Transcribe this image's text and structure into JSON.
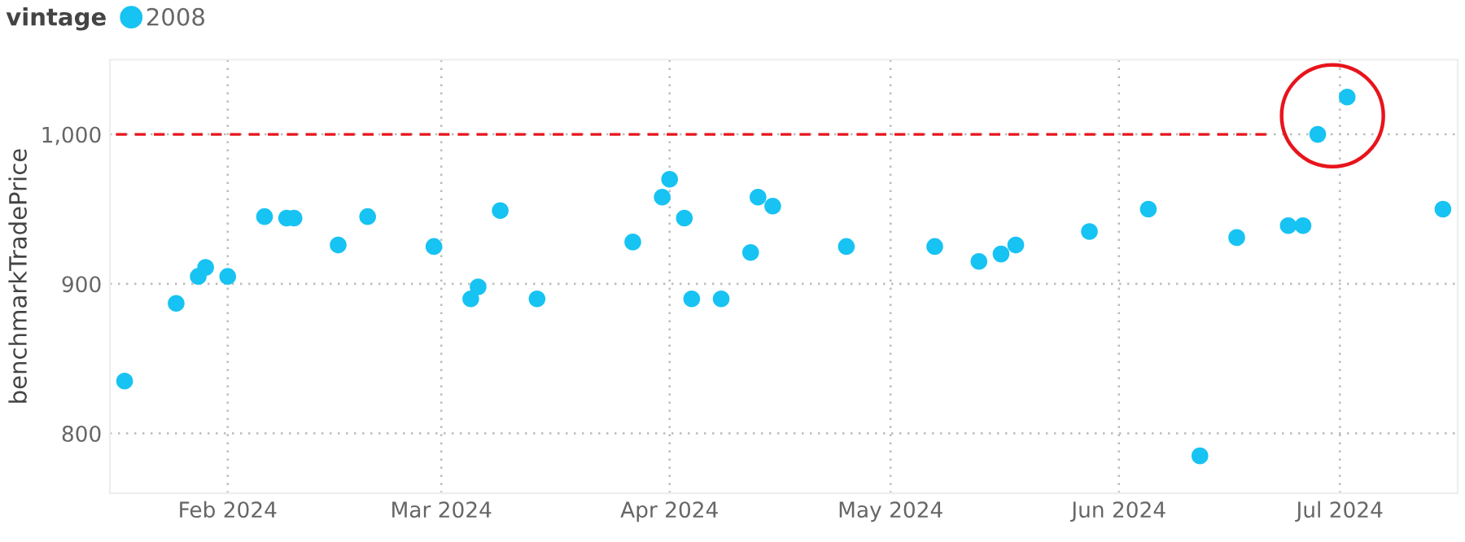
{
  "chart_data": {
    "type": "scatter",
    "ylabel": "benchmarkTradePrice",
    "legend_title": "vintage",
    "legend": "top left",
    "grid": true,
    "xlim": [
      "2024-01-16",
      "2024-07-17"
    ],
    "ylim": [
      760,
      1050
    ],
    "xticks": [
      {
        "value": "2024-02-01",
        "label": "Feb 2024"
      },
      {
        "value": "2024-03-01",
        "label": "Mar 2024"
      },
      {
        "value": "2024-04-01",
        "label": "Apr 2024"
      },
      {
        "value": "2024-05-01",
        "label": "May 2024"
      },
      {
        "value": "2024-06-01",
        "label": "Jun 2024"
      },
      {
        "value": "2024-07-01",
        "label": "Jul 2024"
      }
    ],
    "yticks": [
      {
        "value": 800,
        "label": "800"
      },
      {
        "value": 900,
        "label": "900"
      },
      {
        "value": 1000,
        "label": "1,000"
      }
    ],
    "series": [
      {
        "name": "2008",
        "marker": "circle",
        "color": "#17c3f2",
        "x": [
          "2024-01-18",
          "2024-01-25",
          "2024-01-28",
          "2024-01-29",
          "2024-02-01",
          "2024-02-06",
          "2024-02-09",
          "2024-02-10",
          "2024-02-16",
          "2024-02-20",
          "2024-02-29",
          "2024-03-05",
          "2024-03-06",
          "2024-03-09",
          "2024-03-14",
          "2024-03-27",
          "2024-03-31",
          "2024-04-01",
          "2024-04-03",
          "2024-04-04",
          "2024-04-08",
          "2024-04-12",
          "2024-04-13",
          "2024-04-15",
          "2024-04-25",
          "2024-05-07",
          "2024-05-13",
          "2024-05-16",
          "2024-05-18",
          "2024-05-28",
          "2024-06-05",
          "2024-06-12",
          "2024-06-17",
          "2024-06-24",
          "2024-06-26",
          "2024-06-28",
          "2024-07-02",
          "2024-07-15"
        ],
        "values": [
          835,
          887,
          905,
          911,
          905,
          945,
          944,
          944,
          926,
          945,
          925,
          890,
          898,
          949,
          890,
          928,
          958,
          970,
          944,
          890,
          890,
          921,
          958,
          952,
          925,
          925,
          915,
          920,
          926,
          935,
          950,
          785,
          931,
          939,
          939,
          1000,
          1025,
          950
        ]
      },
      {
        "type": "line",
        "color": "#e8141c",
        "line_style": "dashed",
        "x": [
          "2024-01-16",
          "2024-06-21"
        ],
        "values": [
          1000,
          1000
        ]
      }
    ]
  }
}
